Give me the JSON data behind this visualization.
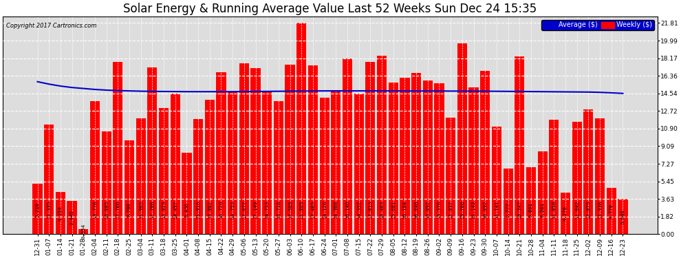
{
  "title": "Solar Energy & Running Average Value Last 52 Weeks Sun Dec 24 15:35",
  "copyright": "Copyright 2017 Cartronics.com",
  "categories": [
    "12-31",
    "01-07",
    "01-14",
    "01-21",
    "01-28",
    "02-04",
    "02-11",
    "02-18",
    "02-25",
    "03-04",
    "03-11",
    "03-18",
    "03-25",
    "04-01",
    "04-08",
    "04-15",
    "04-22",
    "04-29",
    "05-06",
    "05-13",
    "05-20",
    "05-27",
    "06-03",
    "06-10",
    "06-17",
    "06-24",
    "07-01",
    "07-08",
    "07-15",
    "07-22",
    "07-29",
    "08-05",
    "08-12",
    "08-19",
    "08-26",
    "09-02",
    "09-09",
    "09-16",
    "09-23",
    "09-30",
    "10-07",
    "10-14",
    "10-21",
    "10-28",
    "11-04",
    "11-11",
    "11-18",
    "11-25",
    "12-02",
    "12-09",
    "12-16",
    "12-23"
  ],
  "weekly_values": [
    5.21,
    11.335,
    4.354,
    3.445,
    0.554,
    13.776,
    10.605,
    17.76,
    9.7,
    11.965,
    17.206,
    13.029,
    14.497,
    8.436,
    11.916,
    13.882,
    16.72,
    14.753,
    17.677,
    17.149,
    14.753,
    13.718,
    17.509,
    21.809,
    17.465,
    14.126,
    14.908,
    18.14,
    14.552,
    17.813,
    18.463,
    15.681,
    16.184,
    16.648,
    15.892,
    15.576,
    12.037,
    19.708,
    15.143,
    16.892,
    11.141,
    6.777,
    18.347,
    6.891,
    8.561,
    11.858,
    4.276,
    11.642,
    12.879,
    11.938,
    4.77,
    3.646
  ],
  "avg_values": [
    15.75,
    15.5,
    15.3,
    15.15,
    15.05,
    14.95,
    14.88,
    14.83,
    14.8,
    14.77,
    14.75,
    14.74,
    14.73,
    14.72,
    14.72,
    14.72,
    14.72,
    14.72,
    14.73,
    14.74,
    14.75,
    14.76,
    14.77,
    14.78,
    14.79,
    14.8,
    14.8,
    14.8,
    14.8,
    14.8,
    14.8,
    14.8,
    14.79,
    14.79,
    14.79,
    14.79,
    14.78,
    14.78,
    14.77,
    14.77,
    14.76,
    14.75,
    14.74,
    14.73,
    14.72,
    14.71,
    14.7,
    14.69,
    14.68,
    14.65,
    14.6,
    14.54
  ],
  "bar_color": "#ff0000",
  "avg_line_color": "#0000cc",
  "background_color": "#ffffff",
  "plot_bg_color": "#ffffff",
  "grid_color": "#999999",
  "yticks": [
    0.0,
    1.82,
    3.63,
    5.45,
    7.27,
    9.09,
    10.9,
    12.72,
    14.54,
    16.36,
    18.17,
    19.99,
    21.81
  ],
  "ylim": [
    0.0,
    22.5
  ],
  "title_fontsize": 12,
  "tick_fontsize": 6.5,
  "bar_label_fontsize": 5.2,
  "legend_avg_color": "#0000cc",
  "legend_weekly_color": "#ff0000"
}
